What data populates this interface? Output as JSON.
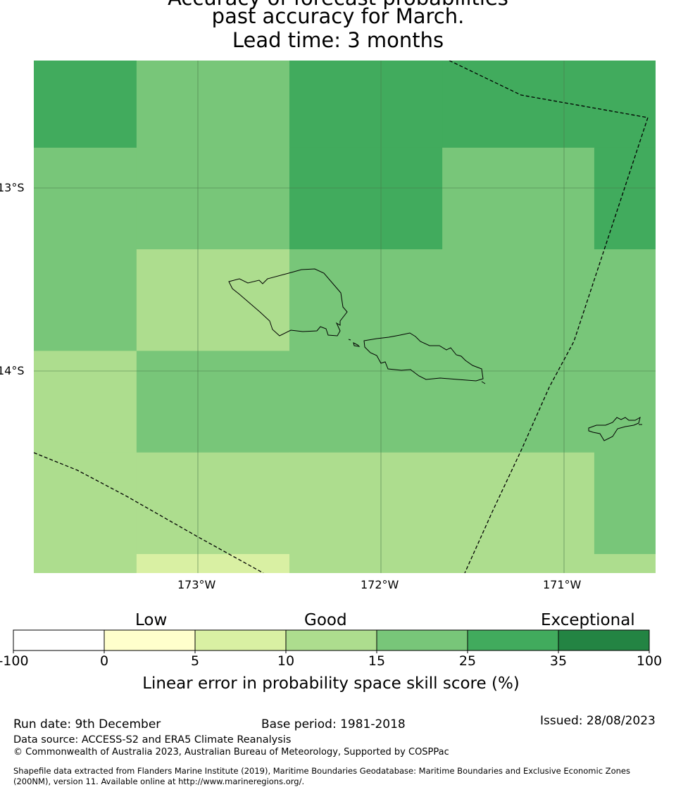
{
  "title": {
    "line1": "Accuracy of forecast probabilities",
    "line2": "past accuracy for March.",
    "line3": "Lead time: 3 months"
  },
  "map": {
    "lat_ticks": [
      "13°S",
      "14°S"
    ],
    "lon_ticks": [
      "173°W",
      "172°W",
      "171°W"
    ],
    "lon_range": [
      -173.9,
      -170.5
    ],
    "lat_range": [
      -12.3,
      -15.1
    ],
    "skill_grid": {
      "lon_edges": [
        -174.1,
        -173.335,
        -172.5,
        -171.665,
        -170.835,
        -170.0
      ],
      "lat_edges": [
        -12.0,
        -12.78,
        -13.335,
        -13.89,
        -14.445,
        -15.0,
        -15.55
      ],
      "classes": [
        [
          "25-35",
          "15-25",
          "25-35",
          "25-35",
          "25-35"
        ],
        [
          "15-25",
          "15-25",
          "25-35",
          "15-25",
          "25-35"
        ],
        [
          "15-25",
          "10-15",
          "15-25",
          "15-25",
          "15-25"
        ],
        [
          "10-15",
          "15-25",
          "15-25",
          "15-25",
          "15-25"
        ],
        [
          "10-15",
          "10-15",
          "10-15",
          "10-15",
          "15-25"
        ],
        [
          "10-15",
          "5-10",
          "10-15",
          "10-15",
          "10-15"
        ]
      ]
    }
  },
  "colorbar": {
    "category_labels": [
      "Low",
      "Good",
      "Exceptional"
    ],
    "bins": [
      {
        "range": "-100 to 0",
        "color": "#ffffff"
      },
      {
        "range": "0 to 5",
        "color": "#ffffcc"
      },
      {
        "range": "5 to 10",
        "color": "#d9f0a3"
      },
      {
        "range": "10 to 15",
        "color": "#addd8e"
      },
      {
        "range": "15 to 25",
        "color": "#78c679"
      },
      {
        "range": "25 to 35",
        "color": "#41ab5d"
      },
      {
        "range": "35 to 100",
        "color": "#238443"
      }
    ],
    "tick_labels": [
      "-100",
      "0",
      "5",
      "10",
      "15",
      "25",
      "35",
      "100"
    ],
    "label": "Linear error in probability space skill score (%)"
  },
  "footer": {
    "run_date": "Run date: 9th December",
    "base_period": "Base period: 1981-2018",
    "issued": "Issued: 28/08/2023",
    "data_source": "Data source: ACCESS-S2 and ERA5 Climate Reanalysis",
    "copyright": "© Commonwealth of Australia 2023, Australian Bureau of Meteorology, Supported by COSPPac",
    "shapefile_line1": "Shapefile data extracted from Flanders Marine Institute (2019), Maritime Boundaries Geodatabase: Maritime Boundaries and Exclusive Economic Zones",
    "shapefile_line2": "(200NM), version 11. Available online at http://www.marineregions.org/."
  }
}
